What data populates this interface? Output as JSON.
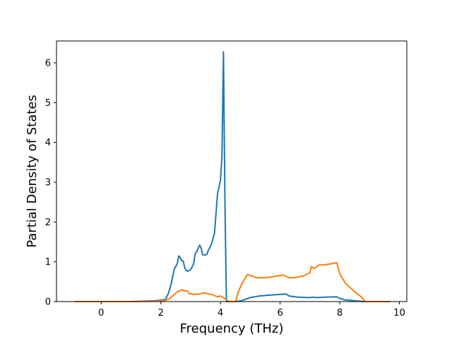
{
  "chart_data": {
    "type": "line",
    "title": "",
    "xlabel": "Frequency (THz)",
    "ylabel": "Partial Density of States",
    "xlim": [
      -1.5,
      10.25
    ],
    "ylim": [
      0,
      6.55
    ],
    "xticks": [
      0,
      2,
      4,
      6,
      8,
      10
    ],
    "yticks": [
      0,
      1,
      2,
      3,
      4,
      5,
      6
    ],
    "grid": false,
    "legend": "none",
    "series": [
      {
        "color": "#1f77b4",
        "x": [
          -0.9,
          0.0,
          1.0,
          1.8,
          2.15,
          2.25,
          2.35,
          2.45,
          2.5,
          2.55,
          2.6,
          2.65,
          2.7,
          2.75,
          2.8,
          2.85,
          2.9,
          3.0,
          3.1,
          3.15,
          3.2,
          3.3,
          3.35,
          3.4,
          3.45,
          3.5,
          3.55,
          3.6,
          3.7,
          3.8,
          3.9,
          4.0,
          4.05,
          4.1,
          4.15,
          4.2,
          4.22,
          4.25,
          4.3,
          4.5,
          4.7,
          5.0,
          5.3,
          5.6,
          6.0,
          6.2,
          6.3,
          6.6,
          7.0,
          7.1,
          7.2,
          7.5,
          7.9,
          8.0,
          8.2,
          8.5,
          8.8,
          9.7
        ],
        "y": [
          0.0,
          0.0,
          0.0,
          0.02,
          0.05,
          0.2,
          0.45,
          0.82,
          0.88,
          0.95,
          1.15,
          1.1,
          1.03,
          1.02,
          0.85,
          0.78,
          0.76,
          0.8,
          0.95,
          1.2,
          1.25,
          1.42,
          1.35,
          1.18,
          1.17,
          1.17,
          1.2,
          1.3,
          1.45,
          1.72,
          2.7,
          3.05,
          3.65,
          6.28,
          2.5,
          0.0,
          0.0,
          0.0,
          0.0,
          0.0,
          0.02,
          0.1,
          0.14,
          0.16,
          0.18,
          0.19,
          0.14,
          0.11,
          0.1,
          0.11,
          0.1,
          0.11,
          0.12,
          0.08,
          0.04,
          0.02,
          0.0,
          0.0
        ]
      },
      {
        "color": "#ff7f0e",
        "x": [
          -0.9,
          0.0,
          1.0,
          1.8,
          2.15,
          2.3,
          2.45,
          2.55,
          2.62,
          2.7,
          2.8,
          2.9,
          2.95,
          3.1,
          3.3,
          3.45,
          3.5,
          3.55,
          3.7,
          3.9,
          4.0,
          4.1,
          4.2,
          4.3,
          4.5,
          4.6,
          4.7,
          4.8,
          4.9,
          5.2,
          5.5,
          5.8,
          6.1,
          6.2,
          6.3,
          6.5,
          6.8,
          7.0,
          7.05,
          7.15,
          7.3,
          7.5,
          7.8,
          7.9,
          8.0,
          8.2,
          8.5,
          8.75,
          8.85,
          9.7
        ],
        "y": [
          0.0,
          0.0,
          0.0,
          0.01,
          0.03,
          0.08,
          0.18,
          0.25,
          0.26,
          0.3,
          0.27,
          0.26,
          0.2,
          0.18,
          0.19,
          0.22,
          0.22,
          0.2,
          0.18,
          0.12,
          0.14,
          0.1,
          0.04,
          0.0,
          0.0,
          0.25,
          0.42,
          0.55,
          0.68,
          0.6,
          0.6,
          0.63,
          0.67,
          0.63,
          0.6,
          0.6,
          0.65,
          0.72,
          0.88,
          0.83,
          0.92,
          0.92,
          0.96,
          0.98,
          0.7,
          0.45,
          0.25,
          0.1,
          0.0,
          0.0
        ]
      }
    ]
  }
}
